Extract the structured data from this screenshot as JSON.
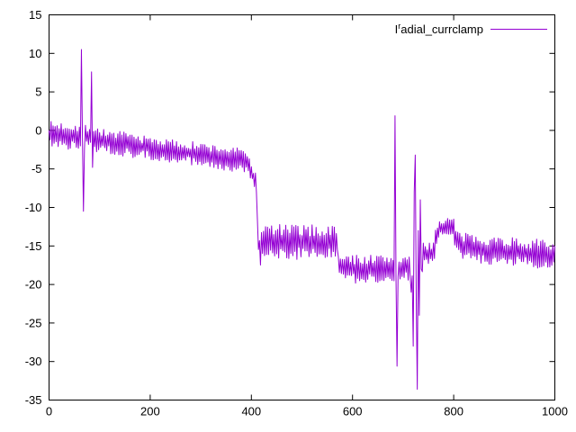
{
  "frame": {
    "background": "#ffffff",
    "border_color": "#000000",
    "tick_color": "#000000"
  },
  "chart_data": {
    "type": "line",
    "title": "",
    "xlabel": "",
    "ylabel": "",
    "grid": false,
    "legend": {
      "position": "top-right",
      "label": "Iʳadial_currclamp",
      "parts": {
        "head": "I",
        "sup": "r",
        "tail": "adial_currclamp"
      }
    },
    "series_color": "#9400d3",
    "xlim": [
      0,
      1000
    ],
    "ylim": [
      -35,
      15
    ],
    "x_ticks": [
      0,
      200,
      400,
      600,
      800,
      1000
    ],
    "y_ticks": [
      15,
      10,
      5,
      0,
      -5,
      -10,
      -15,
      -20,
      -25,
      -30,
      -35
    ],
    "signal": {
      "description": "Noisy stepped signal: band near 0 slowly declining to about -4 by x=400, sharp step down to a band near -14.5 (x 420-570), step down to band near -18 (x 578-680), large transient spikes near x=63-67 (+10.5/-10.5), x=84 (+7.6), x=683-687 (+1.9/-30.6), burst of large swings x=714-738 reaching -33.6 and -3.2, recovery to band near -12.5 around x=770-800, then band near -15.5 to end",
      "sample_step_x": 2,
      "noise_seed": 7,
      "segments": [
        [
          0,
          55,
          -0.6,
          -0.7,
          1.8
        ],
        [
          55,
          80,
          -0.7,
          -0.9,
          1.7
        ],
        [
          80,
          100,
          -1.0,
          -1.2,
          1.7
        ],
        [
          100,
          170,
          -1.3,
          -2.0,
          1.6
        ],
        [
          170,
          280,
          -2.0,
          -3.0,
          1.5
        ],
        [
          280,
          395,
          -3.0,
          -4.0,
          1.6
        ],
        [
          395,
          410,
          -4.5,
          -7.0,
          1.2
        ],
        [
          410,
          418,
          -12.0,
          -16.0,
          1.5
        ],
        [
          418,
          570,
          -14.4,
          -14.6,
          2.3
        ],
        [
          570,
          578,
          -16.5,
          -18.0,
          1.2
        ],
        [
          578,
          682,
          -18.0,
          -18.0,
          1.9
        ],
        [
          682,
          692,
          -18.0,
          -18.0,
          1.6
        ],
        [
          692,
          714,
          -17.8,
          -17.8,
          1.7
        ],
        [
          714,
          738,
          -18.0,
          -17.0,
          2.0
        ],
        [
          738,
          762,
          -16.2,
          -15.8,
          1.6
        ],
        [
          762,
          772,
          -14.0,
          -12.8,
          1.2
        ],
        [
          772,
          800,
          -12.6,
          -12.4,
          1.2
        ],
        [
          800,
          816,
          -13.8,
          -14.8,
          1.3
        ],
        [
          816,
          1000,
          -15.2,
          -16.2,
          1.9
        ]
      ],
      "spike_points": [
        [
          63,
          10.5
        ],
        [
          65,
          -1.0
        ],
        [
          67,
          -10.5
        ],
        [
          84,
          7.6
        ],
        [
          86,
          -4.8
        ],
        [
          683,
          1.9
        ],
        [
          687,
          -30.6
        ],
        [
          716,
          -21.0
        ],
        [
          719,
          -28.0
        ],
        [
          721,
          -8.0
        ],
        [
          723,
          -3.2
        ],
        [
          725,
          -22.0
        ],
        [
          727,
          -33.6
        ],
        [
          729,
          -13.0
        ],
        [
          731,
          -24.0
        ],
        [
          733,
          -9.0
        ],
        [
          735,
          -18.0
        ]
      ]
    }
  }
}
